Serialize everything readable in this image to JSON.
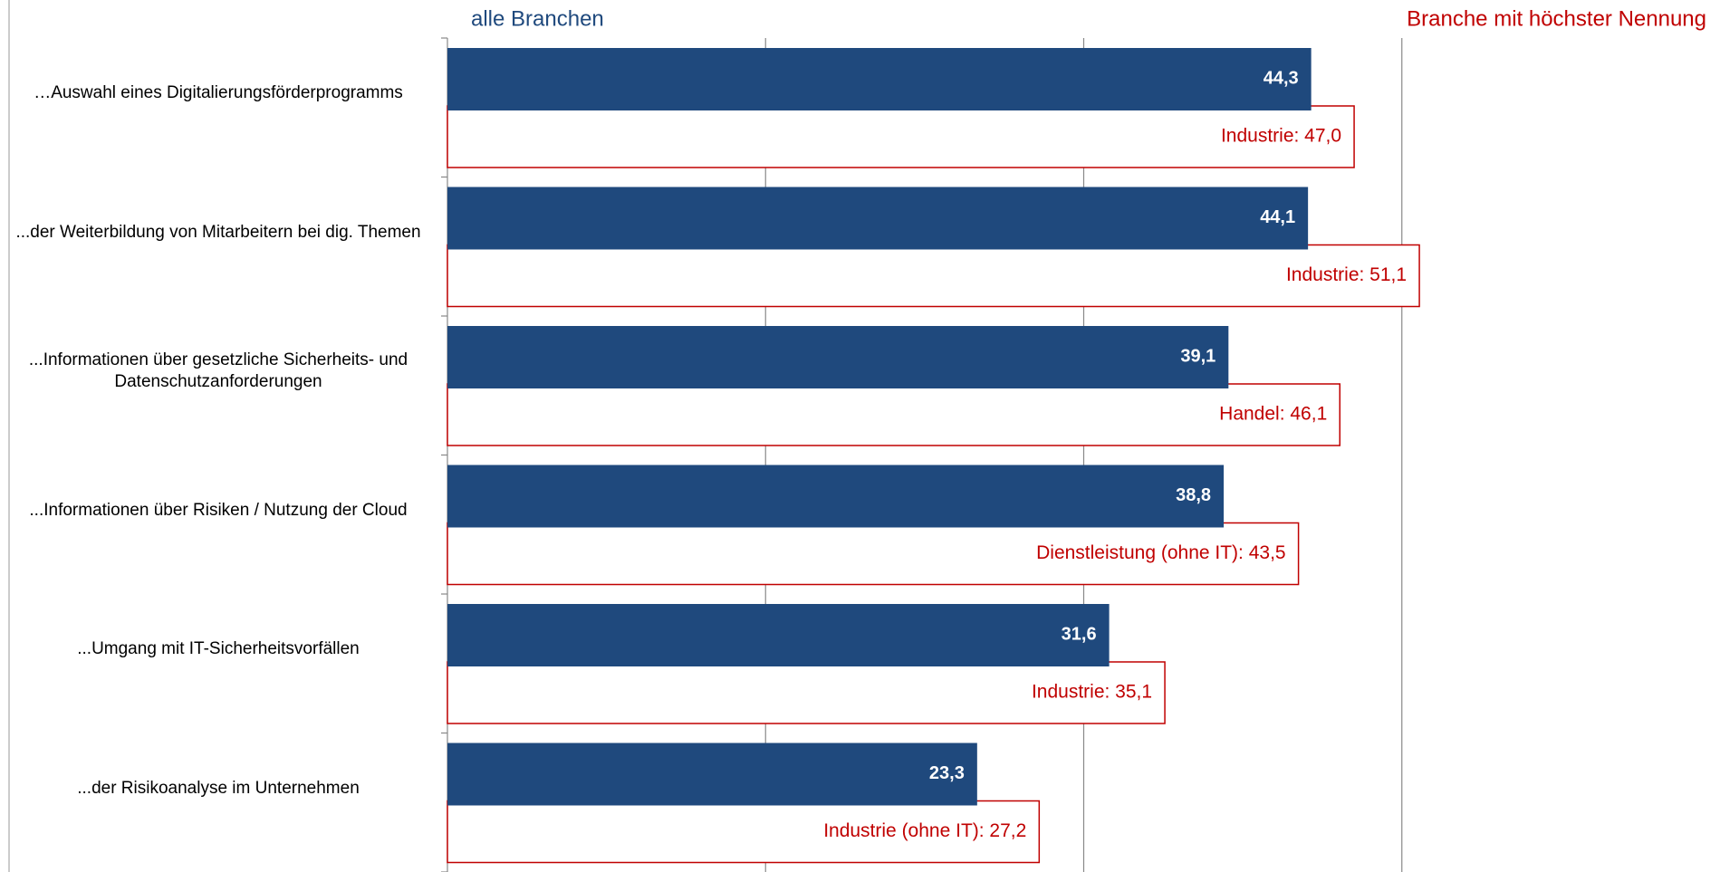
{
  "chart_data": {
    "type": "bar",
    "orientation": "horizontal",
    "categories": [
      "…Auswahl eines Digitalierungsförderprogramms",
      "...der Weiterbildung von Mitarbeitern bei dig. Themen",
      "...Informationen über gesetzliche Sicherheits- und Datenschutzanforderungen",
      "...Informationen über Risiken / Nutzung der Cloud",
      "...Umgang mit IT-Sicherheitsvorfällen",
      "...der Risikoanalyse im Unternehmen"
    ],
    "series": [
      {
        "name": "alle Branchen",
        "color": "#1f497d",
        "values": [
          44.3,
          44.1,
          39.1,
          38.8,
          31.6,
          23.3
        ],
        "value_labels": [
          "44,3",
          "44,1",
          "39,1",
          "38,8",
          "31,6",
          "23,3"
        ]
      },
      {
        "name": "Branche mit höchster Nennung",
        "color": "#c00000",
        "values": [
          47.0,
          51.1,
          46.1,
          43.5,
          35.1,
          27.2
        ],
        "value_labels": [
          "Industrie: 47,0",
          "Industrie: 51,1",
          "Handel: 46,1",
          "Dienstleistung (ohne IT): 43,5",
          "Industrie: 35,1",
          "Industrie (ohne IT): 27,2"
        ]
      }
    ],
    "xlim": [
      -10,
      70
    ],
    "xticks": [
      -10,
      10,
      30,
      50,
      70
    ],
    "grid": true
  }
}
